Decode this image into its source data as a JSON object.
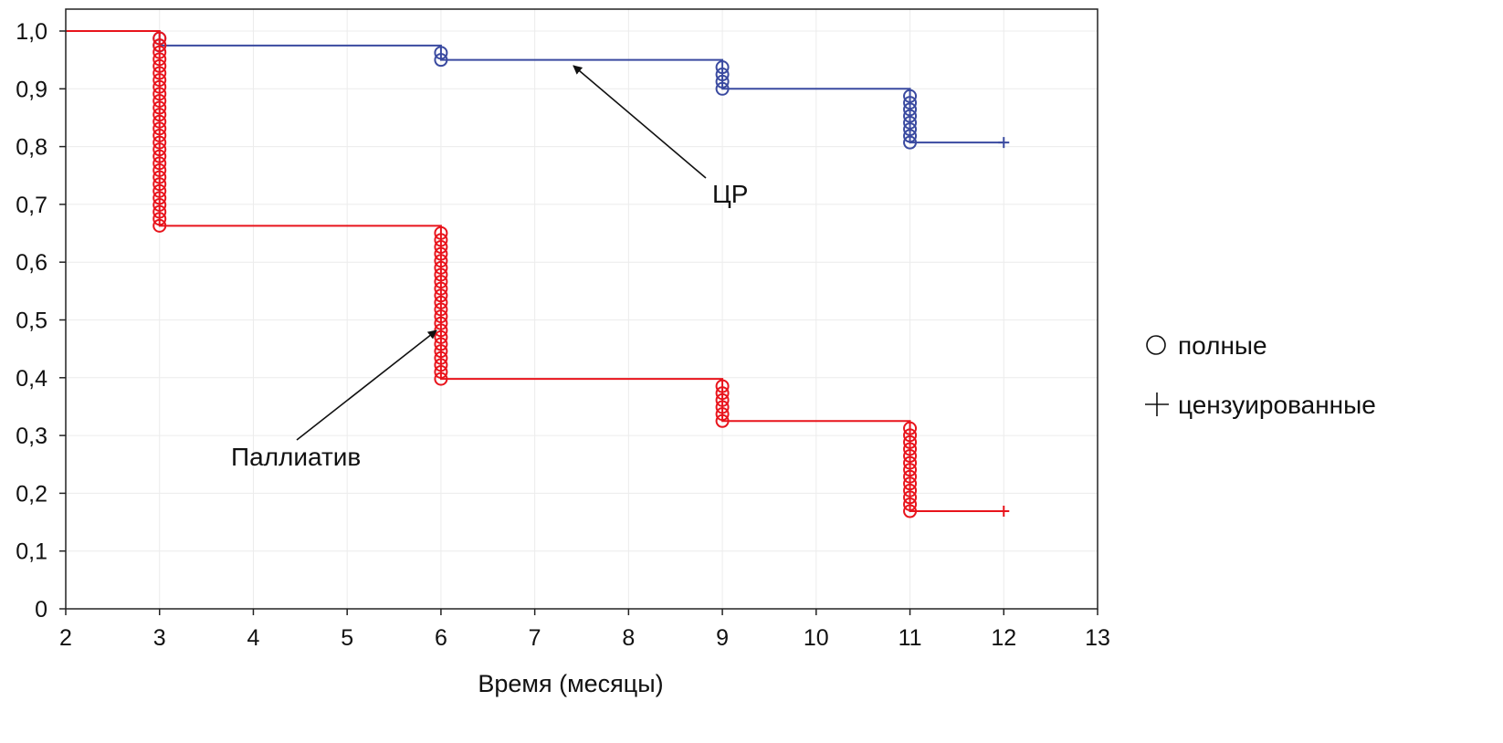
{
  "chart_data": {
    "type": "line",
    "subtype": "kaplan-meier-step",
    "title": "",
    "xlabel": "Время (месяцы)",
    "ylabel": "",
    "xlim": [
      2,
      13
    ],
    "ylim": [
      0,
      1.0
    ],
    "x_ticks": [
      "2",
      "3",
      "4",
      "5",
      "6",
      "7",
      "8",
      "9",
      "10",
      "11",
      "12",
      "13"
    ],
    "y_ticks": [
      "0",
      "0,1",
      "0,2",
      "0,3",
      "0,4",
      "0,5",
      "0,6",
      "0,7",
      "0,8",
      "0,9",
      "1,0"
    ],
    "grid": true,
    "legend_placement": "right",
    "legend": [
      {
        "marker": "circle",
        "label": "полные"
      },
      {
        "marker": "plus",
        "label": "цензуированные"
      }
    ],
    "series": [
      {
        "name": "ЦР",
        "color": "#3a4aa0",
        "steps": [
          {
            "x": 2,
            "y": 1.0
          },
          {
            "x": 3,
            "y": 0.975
          },
          {
            "x": 6,
            "y": 0.95
          },
          {
            "x": 9,
            "y": 0.9
          },
          {
            "x": 11,
            "y": 0.807
          }
        ],
        "end_x": 12,
        "censored": [
          {
            "x": 12,
            "y": 0.807
          }
        ]
      },
      {
        "name": "Паллиатив",
        "color": "#e8141c",
        "steps": [
          {
            "x": 2,
            "y": 1.0
          },
          {
            "x": 3,
            "y": 0.663
          },
          {
            "x": 6,
            "y": 0.398
          },
          {
            "x": 9,
            "y": 0.325
          },
          {
            "x": 11,
            "y": 0.169
          }
        ],
        "end_x": 12,
        "censored": [
          {
            "x": 12,
            "y": 0.169
          }
        ]
      }
    ],
    "annotations": [
      {
        "text": "ЦР",
        "points_to": {
          "x": 7.4,
          "y": 0.95
        }
      },
      {
        "text": "Паллиатив",
        "points_to": {
          "x": 5.95,
          "y": 0.49
        }
      }
    ]
  }
}
